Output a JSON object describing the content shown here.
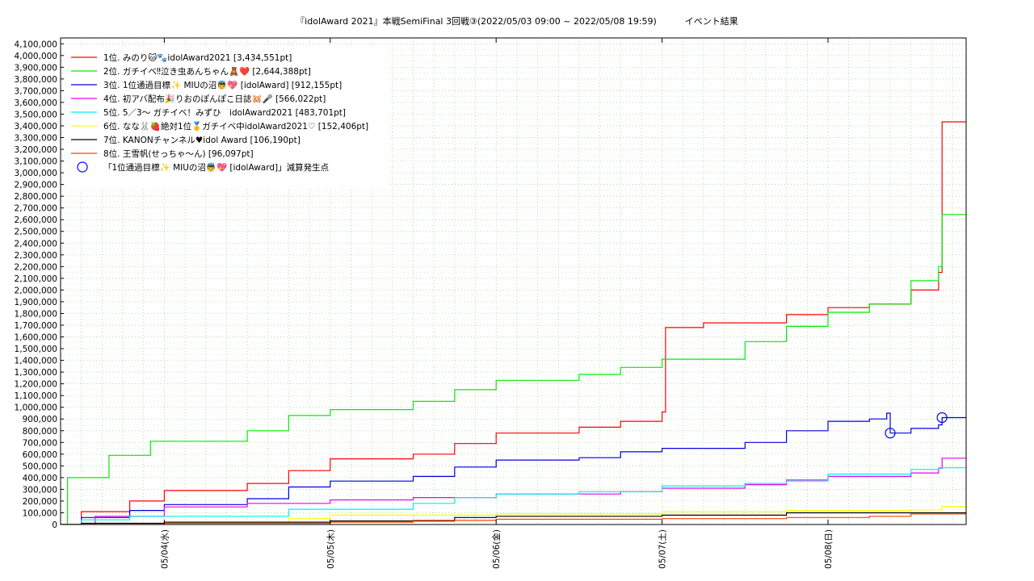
{
  "chart_data": {
    "type": "line",
    "title": "『idolAward 2021』本戦SemiFinal 3回戦③(2022/05/03 09:00 ~ 2022/05/08 19:59)          イベント結果",
    "xlabel": "",
    "ylabel": "",
    "xlim": [
      "2022/05/03 09:00",
      "2022/05/08 19:59"
    ],
    "ylim": [
      0,
      4150000
    ],
    "x_ticks": [
      "05/04(水)",
      "05/05(木)",
      "05/06(金)",
      "05/07(土)",
      "05/08(日)"
    ],
    "y_ticks": [
      "0",
      "100,000",
      "200,000",
      "300,000",
      "400,000",
      "500,000",
      "600,000",
      "700,000",
      "800,000",
      "900,000",
      "1,000,000",
      "1,100,000",
      "1,200,000",
      "1,300,000",
      "1,400,000",
      "1,500,000",
      "1,600,000",
      "1,700,000",
      "1,800,000",
      "1,900,000",
      "2,000,000",
      "2,100,000",
      "2,200,000",
      "2,300,000",
      "2,400,000",
      "2,500,000",
      "2,600,000",
      "2,700,000",
      "2,800,000",
      "2,900,000",
      "3,000,000",
      "3,100,000",
      "3,200,000",
      "3,300,000",
      "3,400,000",
      "3,500,000",
      "3,600,000",
      "3,700,000",
      "3,800,000",
      "3,900,000",
      "4,000,000",
      "4,100,000"
    ],
    "grid": true,
    "legend_position": "top-left",
    "series": [
      {
        "name": "1位. みのり🐱🐾idolAward2021 [3,434,551pt]",
        "color": "#ff0000",
        "points": [
          [
            "2022/05/03 09:00",
            0
          ],
          [
            "2022/05/03 12:00",
            110000
          ],
          [
            "2022/05/03 19:00",
            200000
          ],
          [
            "2022/05/04 00:00",
            290000
          ],
          [
            "2022/05/04 12:00",
            350000
          ],
          [
            "2022/05/04 18:00",
            460000
          ],
          [
            "2022/05/05 00:00",
            560000
          ],
          [
            "2022/05/05 12:00",
            600000
          ],
          [
            "2022/05/05 18:00",
            690000
          ],
          [
            "2022/05/06 00:00",
            780000
          ],
          [
            "2022/05/06 12:00",
            830000
          ],
          [
            "2022/05/06 18:00",
            880000
          ],
          [
            "2022/05/07 00:00",
            960000
          ],
          [
            "2022/05/07 00:30",
            1680000
          ],
          [
            "2022/05/07 06:00",
            1720000
          ],
          [
            "2022/05/07 18:00",
            1790000
          ],
          [
            "2022/05/08 00:00",
            1850000
          ],
          [
            "2022/05/08 06:00",
            1880000
          ],
          [
            "2022/05/08 12:00",
            2000000
          ],
          [
            "2022/05/08 16:00",
            2150000
          ],
          [
            "2022/05/08 16:30",
            3434551
          ],
          [
            "2022/05/08 19:59",
            3434551
          ]
        ]
      },
      {
        "name": "2位. ガチイベ‼泣き虫あんちゃん🧸❤️ [2,644,388pt]",
        "color": "#00ee00",
        "points": [
          [
            "2022/05/03 09:00",
            0
          ],
          [
            "2022/05/03 10:00",
            400000
          ],
          [
            "2022/05/03 16:00",
            590000
          ],
          [
            "2022/05/03 22:00",
            710000
          ],
          [
            "2022/05/04 12:00",
            800000
          ],
          [
            "2022/05/04 18:00",
            930000
          ],
          [
            "2022/05/05 00:00",
            980000
          ],
          [
            "2022/05/05 12:00",
            1050000
          ],
          [
            "2022/05/05 18:00",
            1150000
          ],
          [
            "2022/05/06 00:00",
            1230000
          ],
          [
            "2022/05/06 12:00",
            1280000
          ],
          [
            "2022/05/06 18:00",
            1340000
          ],
          [
            "2022/05/07 00:00",
            1410000
          ],
          [
            "2022/05/07 12:00",
            1560000
          ],
          [
            "2022/05/07 18:00",
            1690000
          ],
          [
            "2022/05/08 00:00",
            1810000
          ],
          [
            "2022/05/08 06:00",
            1880000
          ],
          [
            "2022/05/08 12:00",
            2080000
          ],
          [
            "2022/05/08 16:00",
            2200000
          ],
          [
            "2022/05/08 16:30",
            2644388
          ],
          [
            "2022/05/08 19:59",
            2644388
          ]
        ]
      },
      {
        "name": "3位. 1位通過目標✨ MIUの沼👼💖 [idolAward] [912,155pt]",
        "color": "#0000dd",
        "points": [
          [
            "2022/05/03 09:00",
            0
          ],
          [
            "2022/05/03 12:00",
            60000
          ],
          [
            "2022/05/03 19:00",
            120000
          ],
          [
            "2022/05/04 00:00",
            170000
          ],
          [
            "2022/05/04 12:00",
            220000
          ],
          [
            "2022/05/04 18:00",
            320000
          ],
          [
            "2022/05/05 00:00",
            370000
          ],
          [
            "2022/05/05 12:00",
            410000
          ],
          [
            "2022/05/05 18:00",
            490000
          ],
          [
            "2022/05/06 00:00",
            550000
          ],
          [
            "2022/05/06 12:00",
            570000
          ],
          [
            "2022/05/06 18:00",
            620000
          ],
          [
            "2022/05/07 00:00",
            650000
          ],
          [
            "2022/05/07 12:00",
            700000
          ],
          [
            "2022/05/07 18:00",
            800000
          ],
          [
            "2022/05/08 00:00",
            880000
          ],
          [
            "2022/05/08 06:00",
            900000
          ],
          [
            "2022/05/08 08:30",
            950000
          ],
          [
            "2022/05/08 09:00",
            780000
          ],
          [
            "2022/05/08 12:00",
            820000
          ],
          [
            "2022/05/08 16:00",
            850000
          ],
          [
            "2022/05/08 16:30",
            912155
          ],
          [
            "2022/05/08 19:59",
            912155
          ]
        ]
      },
      {
        "name": "4位. 初アバ配布🎉りおのぽんぽこ日誌🐹🎤 [566,022pt]",
        "color": "#ee00ee",
        "points": [
          [
            "2022/05/03 09:00",
            0
          ],
          [
            "2022/05/03 14:00",
            70000
          ],
          [
            "2022/05/04 00:00",
            150000
          ],
          [
            "2022/05/04 12:00",
            180000
          ],
          [
            "2022/05/05 00:00",
            210000
          ],
          [
            "2022/05/05 12:00",
            230000
          ],
          [
            "2022/05/06 00:00",
            260000
          ],
          [
            "2022/05/06 18:00",
            280000
          ],
          [
            "2022/05/07 00:00",
            310000
          ],
          [
            "2022/05/07 12:00",
            340000
          ],
          [
            "2022/05/07 18:00",
            380000
          ],
          [
            "2022/05/08 00:00",
            410000
          ],
          [
            "2022/05/08 12:00",
            440000
          ],
          [
            "2022/05/08 16:00",
            480000
          ],
          [
            "2022/05/08 16:30",
            566022
          ],
          [
            "2022/05/08 19:59",
            566022
          ]
        ]
      },
      {
        "name": "5位. 5／3〜 ガチイベ！みずひ　idolAward2021 [483,701pt]",
        "color": "#00eeee",
        "points": [
          [
            "2022/05/03 09:00",
            0
          ],
          [
            "2022/05/03 12:00",
            40000
          ],
          [
            "2022/05/03 19:00",
            70000
          ],
          [
            "2022/05/04 18:00",
            130000
          ],
          [
            "2022/05/05 12:00",
            180000
          ],
          [
            "2022/05/05 18:00",
            230000
          ],
          [
            "2022/05/06 00:00",
            260000
          ],
          [
            "2022/05/06 12:00",
            280000
          ],
          [
            "2022/05/07 00:00",
            330000
          ],
          [
            "2022/05/07 12:00",
            350000
          ],
          [
            "2022/05/07 18:00",
            370000
          ],
          [
            "2022/05/08 00:00",
            430000
          ],
          [
            "2022/05/08 12:00",
            470000
          ],
          [
            "2022/05/08 16:00",
            483701
          ],
          [
            "2022/05/08 19:59",
            483701
          ]
        ]
      },
      {
        "name": "6位. なな🐰🍓絶対1位🥇ガチイベ中idolAward2021♡ [152,406pt]",
        "color": "#ffff00",
        "points": [
          [
            "2022/05/03 09:00",
            0
          ],
          [
            "2022/05/04 00:00",
            10000
          ],
          [
            "2022/05/04 18:00",
            50000
          ],
          [
            "2022/05/05 00:00",
            80000
          ],
          [
            "2022/05/06 00:00",
            90000
          ],
          [
            "2022/05/07 00:00",
            110000
          ],
          [
            "2022/05/07 18:00",
            120000
          ],
          [
            "2022/05/08 12:00",
            125000
          ],
          [
            "2022/05/08 16:30",
            152406
          ],
          [
            "2022/05/08 19:59",
            152406
          ]
        ]
      },
      {
        "name": "7位. KANONチャンネル♥idol Award [106,190pt]",
        "color": "#000000",
        "points": [
          [
            "2022/05/03 09:00",
            0
          ],
          [
            "2022/05/03 12:00",
            10000
          ],
          [
            "2022/05/04 00:00",
            20000
          ],
          [
            "2022/05/05 00:00",
            30000
          ],
          [
            "2022/05/05 18:00",
            60000
          ],
          [
            "2022/05/06 00:00",
            70000
          ],
          [
            "2022/05/07 00:00",
            80000
          ],
          [
            "2022/05/07 18:00",
            100000
          ],
          [
            "2022/05/08 12:00",
            100000
          ],
          [
            "2022/05/08 19:59",
            106190
          ]
        ]
      },
      {
        "name": "8位. 王雪帆(せっちゃ〜ん) [96,097pt]",
        "color": "#ff4400",
        "points": [
          [
            "2022/05/03 09:00",
            0
          ],
          [
            "2022/05/04 00:00",
            10000
          ],
          [
            "2022/05/05 00:00",
            20000
          ],
          [
            "2022/05/05 12:00",
            35000
          ],
          [
            "2022/05/06 00:00",
            45000
          ],
          [
            "2022/05/07 00:00",
            50000
          ],
          [
            "2022/05/07 18:00",
            60000
          ],
          [
            "2022/05/08 06:00",
            70000
          ],
          [
            "2022/05/08 12:00",
            90000
          ],
          [
            "2022/05/08 19:59",
            96097
          ]
        ]
      }
    ],
    "markers": {
      "label": "「1位通過目標✨ MIUの沼👼💖 [idolAward]」減算発生点",
      "color": "#0000ff",
      "points": [
        [
          "2022/05/08 09:00",
          780000
        ],
        [
          "2022/05/08 16:30",
          912155
        ]
      ]
    }
  }
}
